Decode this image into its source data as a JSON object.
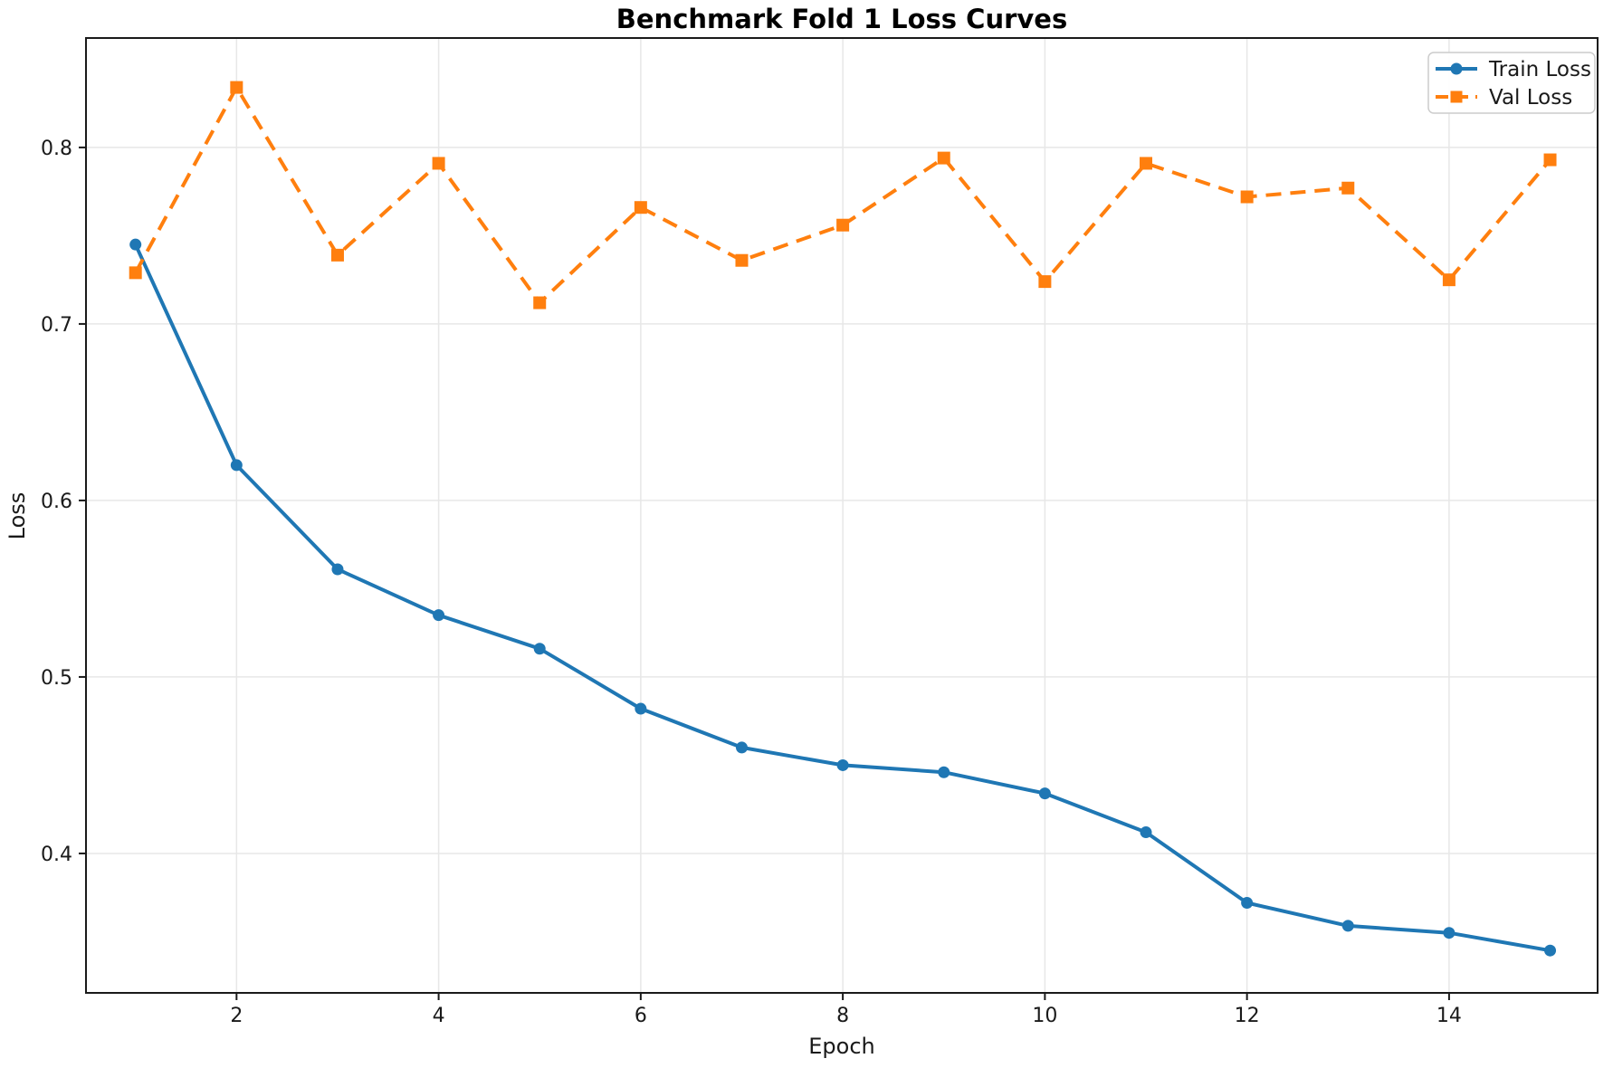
{
  "chart_data": {
    "type": "line",
    "title": "Benchmark Fold 1 Loss Curves",
    "xlabel": "Epoch",
    "ylabel": "Loss",
    "x": [
      1,
      2,
      3,
      4,
      5,
      6,
      7,
      8,
      9,
      10,
      11,
      12,
      13,
      14,
      15
    ],
    "series": [
      {
        "name": "Train Loss",
        "color": "#1f77b4",
        "line_style": "solid",
        "marker": "circle",
        "values": [
          0.745,
          0.62,
          0.561,
          0.535,
          0.516,
          0.482,
          0.46,
          0.45,
          0.446,
          0.434,
          0.412,
          0.372,
          0.359,
          0.355,
          0.345
        ]
      },
      {
        "name": "Val Loss",
        "color": "#ff7f0e",
        "line_style": "dashed",
        "marker": "square",
        "values": [
          0.729,
          0.834,
          0.739,
          0.791,
          0.712,
          0.766,
          0.736,
          0.756,
          0.794,
          0.724,
          0.791,
          0.772,
          0.777,
          0.725,
          0.793
        ]
      }
    ],
    "xticks": [
      2,
      4,
      6,
      8,
      10,
      12,
      14
    ],
    "yticks": [
      0.4,
      0.5,
      0.6,
      0.7,
      0.8
    ],
    "xlim": [
      0.51,
      15.47
    ],
    "ylim": [
      0.321,
      0.862
    ],
    "grid": true,
    "legend_position": "upper right",
    "colors": {
      "grid": "#e7e7e7",
      "spine": "#1a1a1a",
      "tick_text": "#1a1a1a",
      "background": "#ffffff"
    }
  }
}
